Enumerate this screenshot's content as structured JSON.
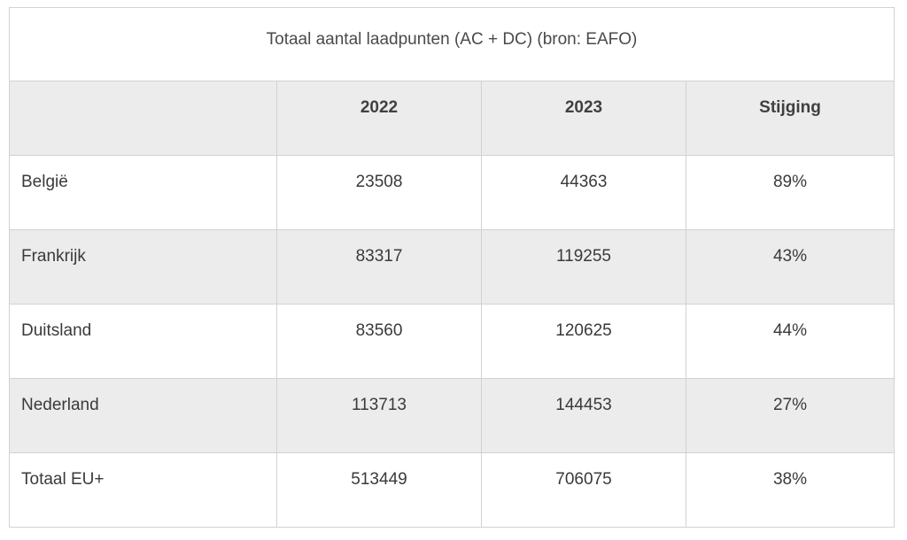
{
  "table": {
    "caption": "Totaal aantal laadpunten (AC + DC) (bron: EAFO)",
    "headers": [
      "",
      "2022",
      "2023",
      "Stijging"
    ],
    "rows": [
      [
        "België",
        "23508",
        "44363",
        "89%"
      ],
      [
        "Frankrijk",
        "83317",
        "119255",
        "43%"
      ],
      [
        "Duitsland",
        "83560",
        "120625",
        "44%"
      ],
      [
        "Nederland",
        "113713",
        "144453",
        "27%"
      ],
      [
        "Totaal EU+",
        "513449",
        "706075",
        "38%"
      ]
    ]
  }
}
